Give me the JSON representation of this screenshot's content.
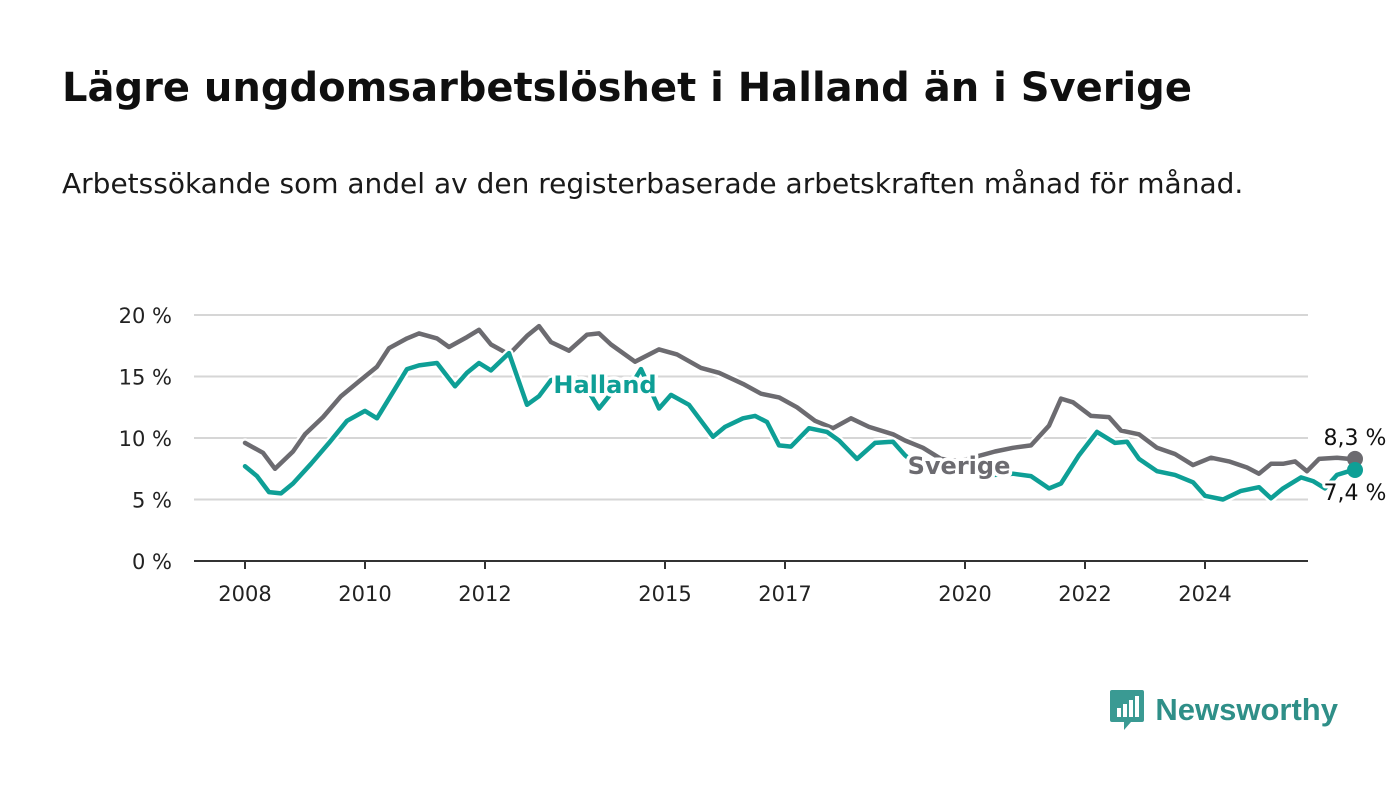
{
  "title": "Lägre ungdomsarbetslöshet i Halland än i Sverige",
  "subtitle": "Arbetssökande som andel av den registerbaserade arbetskraften månad för månad.",
  "brand": {
    "name": "Newsworthy",
    "icon": "chart-speech-bubble-icon",
    "color": "#3a9a93"
  },
  "chart_data": {
    "type": "line",
    "y_ticks": [
      "0 %",
      "5 %",
      "10 %",
      "15 %",
      "20 %"
    ],
    "x_ticks": [
      "2008",
      "2010",
      "2012",
      "2015",
      "2017",
      "2020",
      "2022",
      "2024"
    ],
    "ylim": [
      0,
      20
    ],
    "xlim": [
      2007.75,
      2025.75
    ],
    "grid": true,
    "series": [
      {
        "name": "Sverige",
        "color": "#6c6b70",
        "end_label": "8,3 %",
        "points": [
          [
            2008.0,
            9.6
          ],
          [
            2008.3,
            8.8
          ],
          [
            2008.5,
            7.5
          ],
          [
            2008.8,
            8.9
          ],
          [
            2009.0,
            10.3
          ],
          [
            2009.3,
            11.7
          ],
          [
            2009.6,
            13.4
          ],
          [
            2009.9,
            14.6
          ],
          [
            2010.2,
            15.8
          ],
          [
            2010.4,
            17.3
          ],
          [
            2010.7,
            18.1
          ],
          [
            2010.9,
            18.5
          ],
          [
            2011.2,
            18.1
          ],
          [
            2011.4,
            17.4
          ],
          [
            2011.7,
            18.2
          ],
          [
            2011.9,
            18.8
          ],
          [
            2012.1,
            17.6
          ],
          [
            2012.4,
            16.8
          ],
          [
            2012.7,
            18.3
          ],
          [
            2012.9,
            19.1
          ],
          [
            2013.1,
            17.8
          ],
          [
            2013.4,
            17.1
          ],
          [
            2013.7,
            18.4
          ],
          [
            2013.9,
            18.5
          ],
          [
            2014.1,
            17.6
          ],
          [
            2014.5,
            16.2
          ],
          [
            2014.9,
            17.2
          ],
          [
            2015.2,
            16.8
          ],
          [
            2015.6,
            15.7
          ],
          [
            2015.9,
            15.3
          ],
          [
            2016.3,
            14.4
          ],
          [
            2016.6,
            13.6
          ],
          [
            2016.9,
            13.3
          ],
          [
            2017.2,
            12.5
          ],
          [
            2017.5,
            11.4
          ],
          [
            2017.8,
            10.8
          ],
          [
            2018.1,
            11.6
          ],
          [
            2018.4,
            10.9
          ],
          [
            2018.8,
            10.3
          ],
          [
            2019.0,
            9.8
          ],
          [
            2019.3,
            9.2
          ],
          [
            2019.6,
            8.3
          ],
          [
            2019.9,
            8.1
          ],
          [
            2020.2,
            8.5
          ],
          [
            2020.5,
            8.9
          ],
          [
            2020.8,
            9.2
          ],
          [
            2021.1,
            9.4
          ],
          [
            2021.4,
            11.0
          ],
          [
            2021.6,
            13.2
          ],
          [
            2021.8,
            12.9
          ],
          [
            2022.1,
            11.8
          ],
          [
            2022.4,
            11.7
          ],
          [
            2022.6,
            10.6
          ],
          [
            2022.9,
            10.3
          ],
          [
            2023.2,
            9.2
          ],
          [
            2023.5,
            8.7
          ],
          [
            2023.8,
            7.8
          ],
          [
            2024.1,
            8.4
          ],
          [
            2024.4,
            8.1
          ],
          [
            2024.7,
            7.6
          ],
          [
            2024.9,
            7.1
          ],
          [
            2025.1,
            7.9
          ],
          [
            2025.3,
            7.9
          ],
          [
            2025.5,
            8.1
          ],
          [
            2025.7,
            7.3
          ],
          [
            2025.9,
            8.3
          ],
          [
            2026.2,
            8.4
          ],
          [
            2026.4,
            8.3
          ],
          [
            2026.5,
            8.3
          ]
        ]
      },
      {
        "name": "Halland",
        "color": "#0e9f96",
        "end_label": "7,4 %",
        "points": [
          [
            2008.0,
            7.7
          ],
          [
            2008.2,
            6.9
          ],
          [
            2008.4,
            5.6
          ],
          [
            2008.6,
            5.5
          ],
          [
            2008.8,
            6.3
          ],
          [
            2009.1,
            7.9
          ],
          [
            2009.4,
            9.6
          ],
          [
            2009.7,
            11.4
          ],
          [
            2010.0,
            12.2
          ],
          [
            2010.2,
            11.6
          ],
          [
            2010.5,
            14.0
          ],
          [
            2010.7,
            15.6
          ],
          [
            2010.9,
            15.9
          ],
          [
            2011.2,
            16.1
          ],
          [
            2011.5,
            14.2
          ],
          [
            2011.7,
            15.3
          ],
          [
            2011.9,
            16.1
          ],
          [
            2012.1,
            15.5
          ],
          [
            2012.4,
            16.9
          ],
          [
            2012.7,
            12.7
          ],
          [
            2012.9,
            13.4
          ],
          [
            2013.1,
            14.7
          ],
          [
            2013.4,
            15.1
          ],
          [
            2013.7,
            14.0
          ],
          [
            2013.9,
            12.4
          ],
          [
            2014.1,
            13.6
          ],
          [
            2014.4,
            14.0
          ],
          [
            2014.6,
            15.6
          ],
          [
            2014.9,
            12.4
          ],
          [
            2015.1,
            13.5
          ],
          [
            2015.4,
            12.7
          ],
          [
            2015.8,
            10.1
          ],
          [
            2016.0,
            10.9
          ],
          [
            2016.3,
            11.6
          ],
          [
            2016.5,
            11.8
          ],
          [
            2016.7,
            11.3
          ],
          [
            2016.9,
            9.4
          ],
          [
            2017.1,
            9.3
          ],
          [
            2017.4,
            10.8
          ],
          [
            2017.7,
            10.5
          ],
          [
            2017.9,
            9.8
          ],
          [
            2018.2,
            8.3
          ],
          [
            2018.5,
            9.6
          ],
          [
            2018.8,
            9.7
          ],
          [
            2019.0,
            8.6
          ],
          [
            2019.3,
            7.4
          ],
          [
            2019.6,
            7.6
          ],
          [
            2019.9,
            8.0
          ],
          [
            2020.2,
            7.9
          ],
          [
            2020.5,
            7.0
          ],
          [
            2020.8,
            7.1
          ],
          [
            2021.1,
            6.9
          ],
          [
            2021.4,
            5.9
          ],
          [
            2021.6,
            6.3
          ],
          [
            2021.9,
            8.6
          ],
          [
            2022.2,
            10.5
          ],
          [
            2022.5,
            9.6
          ],
          [
            2022.7,
            9.7
          ],
          [
            2022.9,
            8.3
          ],
          [
            2023.2,
            7.3
          ],
          [
            2023.5,
            7.0
          ],
          [
            2023.8,
            6.4
          ],
          [
            2024.0,
            5.3
          ],
          [
            2024.3,
            5.0
          ],
          [
            2024.6,
            5.7
          ],
          [
            2024.9,
            6.0
          ],
          [
            2025.1,
            5.1
          ],
          [
            2025.3,
            5.9
          ],
          [
            2025.6,
            6.8
          ],
          [
            2025.8,
            6.5
          ],
          [
            2026.0,
            5.9
          ],
          [
            2026.2,
            7.0
          ],
          [
            2026.4,
            7.3
          ],
          [
            2026.5,
            7.4
          ]
        ]
      }
    ]
  }
}
